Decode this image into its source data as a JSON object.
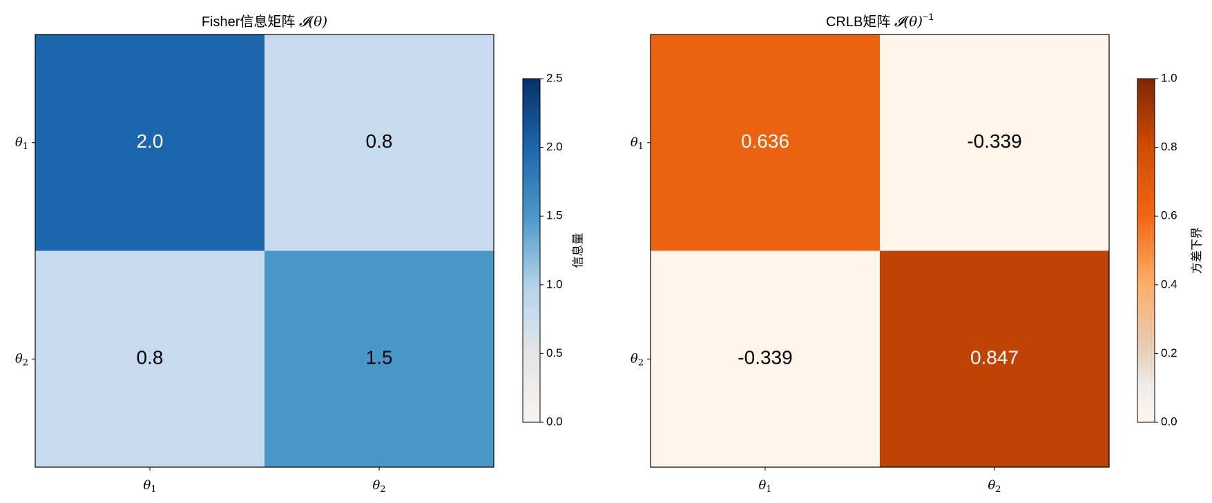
{
  "chart_data": [
    {
      "type": "heatmap",
      "title": "Fisher信息矩阵 𝓘(θ)",
      "title_parts": {
        "text": "Fisher信息矩阵 ",
        "math": "𝓘(θ)",
        "sup": ""
      },
      "x_categories": [
        "θ1",
        "θ2"
      ],
      "y_categories": [
        "θ1",
        "θ2"
      ],
      "values": [
        [
          2.0,
          0.8
        ],
        [
          0.8,
          1.5
        ]
      ],
      "cell_labels": [
        [
          "2.0",
          "0.8"
        ],
        [
          "0.8",
          "1.5"
        ]
      ],
      "label_colors": [
        [
          "#ffffff",
          "#000000"
        ],
        [
          "#000000",
          "#000000"
        ]
      ],
      "colormap": "Blues",
      "colormap_stops": [
        {
          "t": 0.0,
          "color": "#f7f4f0"
        },
        {
          "t": 0.2,
          "color": "#e6e4e4"
        },
        {
          "t": 0.32,
          "color": "#c6dbef"
        },
        {
          "t": 0.4,
          "color": "#b2d2e8"
        },
        {
          "t": 0.6,
          "color": "#4a98ca"
        },
        {
          "t": 0.8,
          "color": "#1b66ad"
        },
        {
          "t": 1.0,
          "color": "#08306b"
        }
      ],
      "clim": [
        0,
        2.5
      ],
      "colorbar": {
        "label": "信息量",
        "ticks": [
          0.0,
          0.5,
          1.0,
          1.5,
          2.0,
          2.5
        ],
        "tick_labels": [
          "0.0",
          "0.5",
          "1.0",
          "1.5",
          "2.0",
          "2.5"
        ]
      }
    },
    {
      "type": "heatmap",
      "title": "CRLB矩阵 𝓘(θ)⁻¹",
      "title_parts": {
        "text": "CRLB矩阵 ",
        "math": "𝓘(θ)",
        "sup": "−1"
      },
      "x_categories": [
        "θ1",
        "θ2"
      ],
      "y_categories": [
        "θ1",
        "θ2"
      ],
      "values": [
        [
          0.636,
          -0.339
        ],
        [
          -0.339,
          0.847
        ]
      ],
      "cell_labels": [
        [
          "0.636",
          "-0.339"
        ],
        [
          "-0.339",
          "0.847"
        ]
      ],
      "label_colors": [
        [
          "#ffffff",
          "#000000"
        ],
        [
          "#000000",
          "#ffffff"
        ]
      ],
      "colormap": "Oranges",
      "colormap_stops": [
        {
          "t": 0.0,
          "color": "#fff5eb"
        },
        {
          "t": 0.1,
          "color": "#efedec"
        },
        {
          "t": 0.22,
          "color": "#e6ccb4"
        },
        {
          "t": 0.4,
          "color": "#fdae6b"
        },
        {
          "t": 0.6,
          "color": "#f06713"
        },
        {
          "t": 0.8,
          "color": "#d14b04"
        },
        {
          "t": 1.0,
          "color": "#7f2704"
        }
      ],
      "clim": [
        0,
        1.0
      ],
      "colorbar": {
        "label": "方差下界",
        "ticks": [
          0.0,
          0.2,
          0.4,
          0.6,
          0.8,
          1.0
        ],
        "tick_labels": [
          "0.0",
          "0.2",
          "0.4",
          "0.6",
          "0.8",
          "1.0"
        ]
      }
    }
  ]
}
